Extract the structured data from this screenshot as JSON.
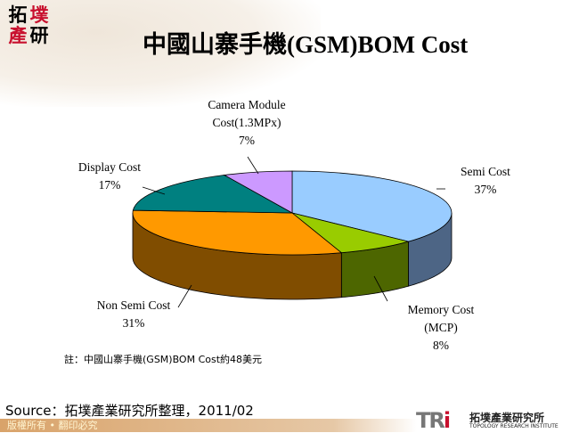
{
  "logo": {
    "chars": [
      "拓",
      "墣",
      "產",
      "研"
    ]
  },
  "title": "中國山寨手機(GSM)BOM Cost",
  "chart_data": {
    "type": "pie",
    "title": "中國山寨手機(GSM)BOM Cost",
    "style": "3d",
    "slices": [
      {
        "label": "Semi Cost",
        "pct_label": "37%",
        "value": 37,
        "color": "#99ccff",
        "side": "#4d6585"
      },
      {
        "label": "Memory Cost (MCP)",
        "pct_label": "8%",
        "value": 8,
        "color": "#99cc00",
        "side": "#4d6600"
      },
      {
        "label": "Non Semi Cost",
        "pct_label": "31%",
        "value": 31,
        "color": "#ff9900",
        "side": "#804d00"
      },
      {
        "label": "Display Cost",
        "pct_label": "17%",
        "value": 17,
        "color": "#008080",
        "side": "#004040"
      },
      {
        "label": "Camera Module Cost(1.3MPx)",
        "pct_label": "7%",
        "value": 7,
        "color": "#cc99ff",
        "side": "#664d80"
      }
    ]
  },
  "labels": {
    "semi": [
      "Semi Cost",
      "37%"
    ],
    "memory": [
      "Memory Cost",
      "(MCP)",
      "8%"
    ],
    "nonsemi": [
      "Non Semi Cost",
      "31%"
    ],
    "display": [
      "Display Cost",
      "17%"
    ],
    "camera": [
      "Camera Module",
      "Cost(1.3MPx)",
      "7%"
    ]
  },
  "note": "註：中國山寨手機(GSM)BOM Cost約48美元",
  "source": "Source：拓墣產業研究所整理，2011/02",
  "footer": "版權所有 • 翻印必究",
  "brand": {
    "mark_a": "TR",
    "mark_b": "i",
    "zh": "拓墣產業研究所",
    "en": "TOPOLOGY RESEARCH INSTITUTE"
  }
}
